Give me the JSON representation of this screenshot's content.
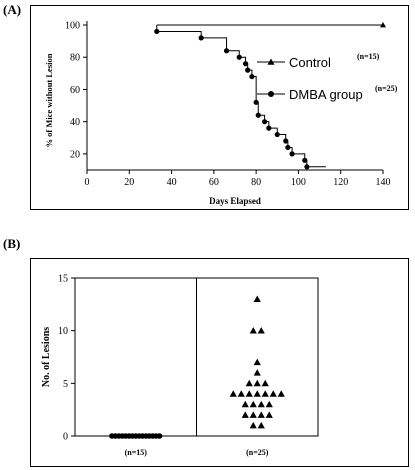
{
  "panels": {
    "a_label": "(A)",
    "b_label": "(B)"
  },
  "chart_data": [
    {
      "type": "line",
      "step": true,
      "xlabel": "Days Elapsed",
      "ylabel": "% of Mice without Lesion",
      "xlim": [
        0,
        140
      ],
      "ylim": [
        10,
        100
      ],
      "xticks": [
        0,
        20,
        40,
        60,
        80,
        100,
        120,
        140
      ],
      "yticks": [
        20,
        40,
        60,
        80,
        100
      ],
      "legend_position": "right",
      "series": [
        {
          "name": "Control",
          "n_label": "(n=15)",
          "marker": "triangle",
          "points": [
            [
              33,
              100
            ],
            [
              140,
              100
            ]
          ]
        },
        {
          "name": "DMBA group",
          "n_label": "(n=25)",
          "marker": "circle",
          "points": [
            [
              33,
              96
            ],
            [
              54,
              92
            ],
            [
              66,
              84
            ],
            [
              72,
              80
            ],
            [
              75,
              76
            ],
            [
              76,
              72
            ],
            [
              78,
              68
            ],
            [
              80,
              52
            ],
            [
              81,
              44
            ],
            [
              84,
              40
            ],
            [
              86,
              36
            ],
            [
              90,
              32
            ],
            [
              94,
              28
            ],
            [
              95,
              24
            ],
            [
              97,
              20
            ],
            [
              103,
              16
            ],
            [
              104,
              12
            ]
          ],
          "end": [
            113,
            12
          ]
        }
      ]
    },
    {
      "type": "scatter",
      "ylabel": "No. of Lesions",
      "ylim": [
        0,
        15
      ],
      "yticks": [
        0,
        5,
        10,
        15
      ],
      "categories": [
        "(n=15)",
        "(n=25)"
      ],
      "series": [
        {
          "name": "(n=15)",
          "marker": "circle",
          "values": [
            0,
            0,
            0,
            0,
            0,
            0,
            0,
            0,
            0,
            0,
            0,
            0,
            0,
            0,
            0
          ]
        },
        {
          "name": "(n=25)",
          "marker": "triangle",
          "values": [
            13,
            10,
            10,
            7,
            6,
            5,
            5,
            5,
            4,
            4,
            4,
            4,
            4,
            4,
            4,
            3,
            3,
            3,
            3,
            2,
            2,
            2,
            2,
            1,
            1
          ]
        }
      ]
    }
  ]
}
